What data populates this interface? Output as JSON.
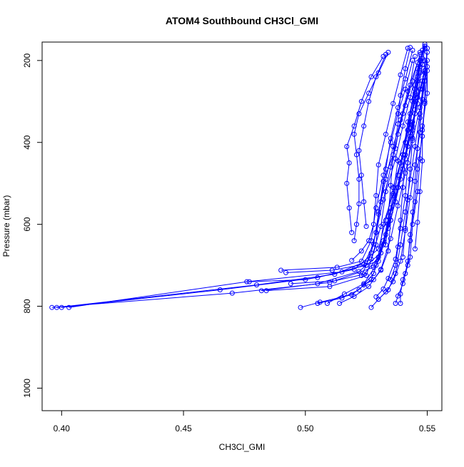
{
  "chart_data": {
    "type": "line",
    "title": "ATOM4 Southbound CH3Cl_GMI",
    "xlabel": "CH3Cl_GMI",
    "ylabel": "Pressure (mbar)",
    "xlim": [
      0.392,
      0.556
    ],
    "ylim": [
      1055,
      155
    ],
    "y_reversed": true,
    "xticks": [
      0.4,
      0.45,
      0.5,
      0.55
    ],
    "xtick_labels": [
      "0.40",
      "0.45",
      "0.50",
      "0.55"
    ],
    "yticks": [
      200,
      400,
      600,
      800,
      1000
    ],
    "ytick_labels": [
      "200",
      "400",
      "600",
      "800",
      "1000"
    ],
    "grid": false,
    "legend": "none",
    "marker": "open-circle",
    "color": "#0000ff",
    "series": [
      {
        "values": [
          [
            0.396,
            803
          ],
          [
            0.47,
            768
          ],
          [
            0.51,
            742
          ],
          [
            0.528,
            705
          ],
          [
            0.532,
            640
          ],
          [
            0.535,
            560
          ],
          [
            0.538,
            480
          ],
          [
            0.541,
            400
          ],
          [
            0.543,
            330
          ],
          [
            0.545,
            260
          ],
          [
            0.547,
            200
          ],
          [
            0.549,
            160
          ]
        ]
      },
      {
        "values": [
          [
            0.403,
            803
          ],
          [
            0.476,
            740
          ],
          [
            0.515,
            716
          ],
          [
            0.53,
            690
          ],
          [
            0.534,
            610
          ],
          [
            0.536,
            530
          ],
          [
            0.539,
            450
          ],
          [
            0.542,
            370
          ],
          [
            0.544,
            300
          ],
          [
            0.546,
            240
          ],
          [
            0.548,
            175
          ]
        ]
      },
      {
        "values": [
          [
            0.4,
            803
          ],
          [
            0.465,
            760
          ],
          [
            0.505,
            730
          ],
          [
            0.525,
            700
          ],
          [
            0.529,
            620
          ],
          [
            0.532,
            540
          ],
          [
            0.535,
            460
          ],
          [
            0.538,
            380
          ],
          [
            0.541,
            310
          ],
          [
            0.544,
            250
          ],
          [
            0.547,
            185
          ]
        ]
      },
      {
        "values": [
          [
            0.398,
            803
          ],
          [
            0.48,
            748
          ],
          [
            0.512,
            722
          ],
          [
            0.527,
            685
          ],
          [
            0.531,
            605
          ],
          [
            0.533,
            520
          ],
          [
            0.537,
            440
          ],
          [
            0.54,
            360
          ],
          [
            0.543,
            290
          ],
          [
            0.546,
            220
          ],
          [
            0.549,
            165
          ]
        ]
      },
      {
        "values": [
          [
            0.477,
            740
          ],
          [
            0.5,
            735
          ],
          [
            0.52,
            710
          ],
          [
            0.53,
            660
          ],
          [
            0.533,
            590
          ],
          [
            0.536,
            510
          ],
          [
            0.54,
            430
          ],
          [
            0.543,
            350
          ],
          [
            0.545,
            280
          ],
          [
            0.548,
            210
          ]
        ]
      },
      {
        "values": [
          [
            0.482,
            762
          ],
          [
            0.505,
            745
          ],
          [
            0.522,
            715
          ],
          [
            0.531,
            670
          ],
          [
            0.534,
            600
          ],
          [
            0.537,
            520
          ],
          [
            0.541,
            440
          ],
          [
            0.544,
            360
          ],
          [
            0.546,
            290
          ],
          [
            0.549,
            225
          ]
        ]
      },
      {
        "values": [
          [
            0.484,
            762
          ],
          [
            0.51,
            752
          ],
          [
            0.525,
            725
          ],
          [
            0.529,
            650
          ],
          [
            0.53,
            570
          ],
          [
            0.533,
            490
          ],
          [
            0.536,
            410
          ],
          [
            0.54,
            330
          ],
          [
            0.543,
            260
          ],
          [
            0.545,
            190
          ]
        ]
      },
      {
        "values": [
          [
            0.49,
            712
          ],
          [
            0.513,
            705
          ],
          [
            0.523,
            690
          ],
          [
            0.527,
            640
          ],
          [
            0.529,
            560
          ],
          [
            0.532,
            480
          ],
          [
            0.535,
            400
          ],
          [
            0.538,
            330
          ],
          [
            0.541,
            270
          ],
          [
            0.544,
            200
          ]
        ]
      },
      {
        "values": [
          [
            0.492,
            718
          ],
          [
            0.511,
            712
          ],
          [
            0.524,
            698
          ],
          [
            0.528,
            648
          ],
          [
            0.53,
            575
          ],
          [
            0.532,
            495
          ],
          [
            0.537,
            415
          ],
          [
            0.539,
            345
          ],
          [
            0.542,
            275
          ],
          [
            0.546,
            205
          ]
        ]
      },
      {
        "values": [
          [
            0.494,
            745
          ],
          [
            0.512,
            738
          ],
          [
            0.524,
            722
          ],
          [
            0.53,
            680
          ],
          [
            0.532,
            600
          ],
          [
            0.536,
            525
          ],
          [
            0.538,
            445
          ],
          [
            0.542,
            370
          ],
          [
            0.545,
            300
          ],
          [
            0.547,
            230
          ]
        ]
      },
      {
        "values": [
          [
            0.498,
            803
          ],
          [
            0.506,
            790
          ],
          [
            0.519,
            772
          ],
          [
            0.527,
            735
          ],
          [
            0.531,
            670
          ],
          [
            0.535,
            590
          ],
          [
            0.538,
            510
          ],
          [
            0.541,
            430
          ],
          [
            0.544,
            350
          ],
          [
            0.547,
            270
          ]
        ]
      },
      {
        "values": [
          [
            0.505,
            793
          ],
          [
            0.515,
            780
          ],
          [
            0.522,
            760
          ],
          [
            0.528,
            720
          ],
          [
            0.532,
            650
          ],
          [
            0.535,
            570
          ],
          [
            0.539,
            490
          ],
          [
            0.542,
            410
          ],
          [
            0.545,
            330
          ],
          [
            0.548,
            250
          ]
        ]
      },
      {
        "values": [
          [
            0.509,
            793
          ],
          [
            0.516,
            770
          ],
          [
            0.524,
            745
          ],
          [
            0.529,
            700
          ],
          [
            0.533,
            625
          ],
          [
            0.537,
            545
          ],
          [
            0.54,
            465
          ],
          [
            0.543,
            385
          ],
          [
            0.546,
            305
          ],
          [
            0.549,
            225
          ]
        ]
      },
      {
        "values": [
          [
            0.514,
            793
          ],
          [
            0.52,
            776
          ],
          [
            0.526,
            752
          ],
          [
            0.531,
            710
          ],
          [
            0.535,
            635
          ],
          [
            0.538,
            555
          ],
          [
            0.541,
            475
          ],
          [
            0.544,
            395
          ],
          [
            0.547,
            315
          ],
          [
            0.549,
            240
          ]
        ]
      },
      {
        "values": [
          [
            0.527,
            803
          ],
          [
            0.53,
            783
          ],
          [
            0.534,
            760
          ],
          [
            0.537,
            720
          ],
          [
            0.539,
            650
          ],
          [
            0.541,
            570
          ],
          [
            0.543,
            490
          ],
          [
            0.545,
            410
          ],
          [
            0.547,
            330
          ],
          [
            0.549,
            250
          ],
          [
            0.55,
            180
          ]
        ]
      },
      {
        "values": [
          [
            0.53,
            783
          ],
          [
            0.533,
            765
          ],
          [
            0.536,
            740
          ],
          [
            0.539,
            690
          ],
          [
            0.541,
            615
          ],
          [
            0.543,
            535
          ],
          [
            0.545,
            455
          ],
          [
            0.547,
            375
          ],
          [
            0.548,
            295
          ],
          [
            0.55,
            215
          ]
        ]
      },
      {
        "values": [
          [
            0.537,
            793
          ],
          [
            0.538,
            775
          ],
          [
            0.54,
            745
          ],
          [
            0.542,
            700
          ],
          [
            0.543,
            625
          ],
          [
            0.545,
            545
          ],
          [
            0.546,
            465
          ],
          [
            0.548,
            385
          ],
          [
            0.549,
            305
          ],
          [
            0.55,
            225
          ]
        ]
      },
      {
        "values": [
          [
            0.539,
            793
          ],
          [
            0.539,
            770
          ],
          [
            0.54,
            735
          ],
          [
            0.543,
            680
          ],
          [
            0.544,
            600
          ],
          [
            0.546,
            520
          ],
          [
            0.547,
            440
          ],
          [
            0.548,
            360
          ],
          [
            0.55,
            280
          ],
          [
            0.55,
            200
          ]
        ]
      },
      {
        "values": [
          [
            0.529,
            777
          ],
          [
            0.532,
            758
          ],
          [
            0.534,
            732
          ],
          [
            0.537,
            685
          ],
          [
            0.539,
            610
          ],
          [
            0.541,
            530
          ],
          [
            0.542,
            450
          ],
          [
            0.544,
            370
          ],
          [
            0.546,
            290
          ],
          [
            0.548,
            210
          ],
          [
            0.549,
            170
          ]
        ]
      },
      {
        "values": [
          [
            0.524,
            748
          ],
          [
            0.528,
            735
          ],
          [
            0.531,
            712
          ],
          [
            0.534,
            665
          ],
          [
            0.535,
            590
          ],
          [
            0.538,
            510
          ],
          [
            0.54,
            430
          ],
          [
            0.542,
            350
          ],
          [
            0.545,
            270
          ],
          [
            0.548,
            195
          ]
        ]
      },
      {
        "values": [
          [
            0.519,
            688
          ],
          [
            0.523,
            665
          ],
          [
            0.526,
            640
          ],
          [
            0.528,
            600
          ],
          [
            0.529,
            530
          ],
          [
            0.53,
            455
          ],
          [
            0.533,
            380
          ],
          [
            0.536,
            305
          ],
          [
            0.539,
            235
          ],
          [
            0.542,
            170
          ]
        ]
      },
      {
        "values": [
          [
            0.523,
            725
          ],
          [
            0.525,
            700
          ],
          [
            0.527,
            670
          ],
          [
            0.529,
            620
          ],
          [
            0.531,
            545
          ],
          [
            0.533,
            465
          ],
          [
            0.535,
            390
          ],
          [
            0.538,
            315
          ],
          [
            0.541,
            245
          ],
          [
            0.544,
            175
          ]
        ]
      },
      {
        "values": [
          [
            0.535,
            735
          ],
          [
            0.537,
            700
          ],
          [
            0.538,
            655
          ],
          [
            0.539,
            590
          ],
          [
            0.54,
            510
          ],
          [
            0.541,
            430
          ],
          [
            0.543,
            355
          ],
          [
            0.545,
            285
          ],
          [
            0.547,
            215
          ],
          [
            0.549,
            165
          ]
        ]
      },
      {
        "values": [
          [
            0.541,
            720
          ],
          [
            0.542,
            690
          ],
          [
            0.543,
            640
          ],
          [
            0.544,
            570
          ],
          [
            0.545,
            495
          ],
          [
            0.546,
            415
          ],
          [
            0.547,
            340
          ],
          [
            0.548,
            270
          ],
          [
            0.549,
            200
          ]
        ]
      },
      {
        "values": [
          [
            0.52,
            640
          ],
          [
            0.521,
            600
          ],
          [
            0.522,
            550
          ],
          [
            0.522,
            490
          ],
          [
            0.521,
            430
          ],
          [
            0.52,
            380
          ],
          [
            0.522,
            330
          ],
          [
            0.526,
            280
          ],
          [
            0.53,
            230
          ],
          [
            0.534,
            180
          ]
        ]
      },
      {
        "values": [
          [
            0.519,
            620
          ],
          [
            0.518,
            560
          ],
          [
            0.517,
            500
          ],
          [
            0.518,
            450
          ],
          [
            0.517,
            410
          ],
          [
            0.52,
            360
          ],
          [
            0.523,
            300
          ],
          [
            0.527,
            240
          ],
          [
            0.532,
            190
          ]
        ]
      },
      {
        "values": [
          [
            0.525,
            605
          ],
          [
            0.524,
            545
          ],
          [
            0.523,
            480
          ],
          [
            0.522,
            420
          ],
          [
            0.524,
            360
          ],
          [
            0.526,
            300
          ],
          [
            0.529,
            240
          ],
          [
            0.533,
            185
          ]
        ]
      },
      {
        "values": [
          [
            0.533,
            650
          ],
          [
            0.534,
            580
          ],
          [
            0.535,
            505
          ],
          [
            0.536,
            430
          ],
          [
            0.538,
            355
          ],
          [
            0.539,
            285
          ],
          [
            0.541,
            220
          ],
          [
            0.543,
            168
          ]
        ]
      },
      {
        "values": [
          [
            0.545,
            660
          ],
          [
            0.546,
            595
          ],
          [
            0.547,
            520
          ],
          [
            0.548,
            445
          ],
          [
            0.548,
            370
          ],
          [
            0.549,
            300
          ],
          [
            0.549,
            230
          ],
          [
            0.55,
            170
          ]
        ]
      },
      {
        "values": [
          [
            0.54,
            680
          ],
          [
            0.541,
            610
          ],
          [
            0.542,
            540
          ],
          [
            0.543,
            465
          ],
          [
            0.544,
            390
          ],
          [
            0.545,
            320
          ],
          [
            0.546,
            250
          ],
          [
            0.547,
            180
          ]
        ]
      }
    ]
  }
}
